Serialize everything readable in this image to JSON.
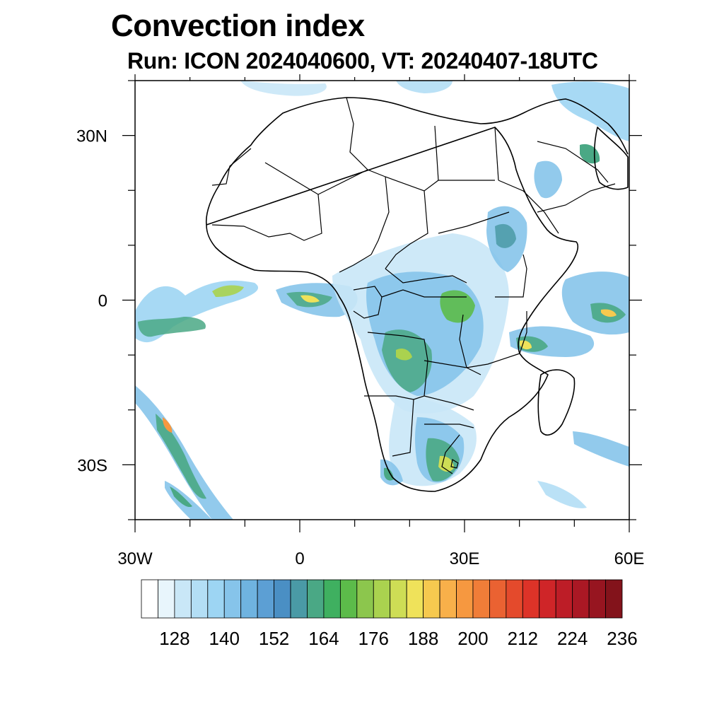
{
  "header": {
    "title": "Convection index",
    "subtitle": "Run: ICON 2024040600,  VT: 20240407-18UTC"
  },
  "map": {
    "lon_ticks": [
      {
        "value": -30,
        "label": "30W"
      },
      {
        "value": 0,
        "label": "0"
      },
      {
        "value": 30,
        "label": "30E"
      },
      {
        "value": 60,
        "label": "60E"
      }
    ],
    "lat_ticks": [
      {
        "value": 30,
        "label": "30N"
      },
      {
        "value": 0,
        "label": "0"
      },
      {
        "value": -30,
        "label": "30S"
      }
    ],
    "lon_range": [
      -30,
      60
    ],
    "lat_range": [
      -40,
      40
    ]
  },
  "colorbar": {
    "labels": [
      "128",
      "140",
      "152",
      "164",
      "176",
      "188",
      "200",
      "212",
      "224",
      "236"
    ],
    "colors": [
      "#ffffff",
      "#e8f5fc",
      "#c9e7f7",
      "#b3def5",
      "#9dd5f3",
      "#86c4ea",
      "#6fb3e0",
      "#5c9fd4",
      "#4a8fc4",
      "#4a9aa6",
      "#4aa885",
      "#3fb060",
      "#5cbb4a",
      "#8cc64d",
      "#aad24f",
      "#cedd55",
      "#efe25a",
      "#f6c94f",
      "#f8b04a",
      "#f69840",
      "#f07d38",
      "#ea6232",
      "#e44a2c",
      "#dd3328",
      "#cf2528",
      "#bd1d27",
      "#aa1824",
      "#971520",
      "#83131b"
    ]
  }
}
